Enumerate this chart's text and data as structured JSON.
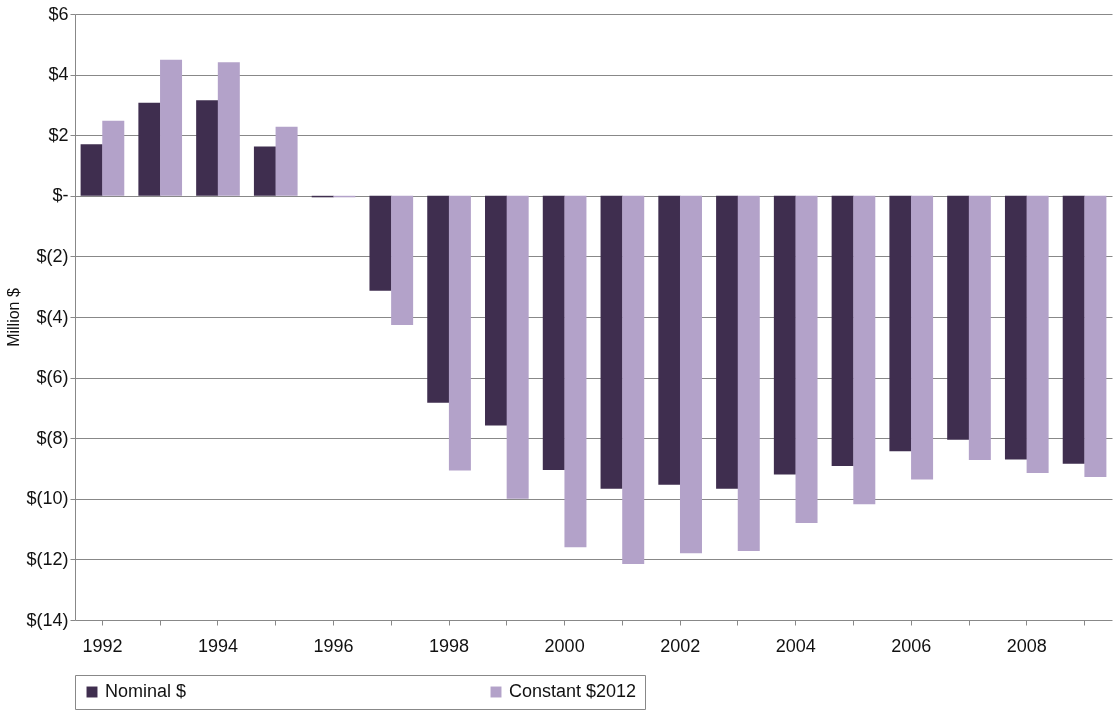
{
  "chart_data": {
    "type": "bar",
    "ylabel": "Million $",
    "categories": [
      "1992",
      null,
      "1994",
      null,
      "1996",
      null,
      "1998",
      null,
      "2000",
      null,
      "2002",
      null,
      "2004",
      null,
      "2006",
      null,
      "2008",
      null
    ],
    "series": [
      {
        "name": "Nominal $",
        "color": "#3f2e4f",
        "values": [
          1.7,
          3.07,
          3.15,
          1.63,
          -0.05,
          -3.13,
          -6.83,
          -7.58,
          -9.05,
          -9.67,
          -9.54,
          -9.67,
          -9.2,
          -8.92,
          -8.43,
          -8.05,
          -8.7,
          -8.84
        ]
      },
      {
        "name": "Constant $2012",
        "color": "#b3a2c9",
        "values": [
          2.48,
          4.49,
          4.41,
          2.28,
          -0.05,
          -4.26,
          -9.07,
          -10.0,
          -11.6,
          -12.15,
          -11.8,
          -11.72,
          -10.8,
          -10.18,
          -9.36,
          -8.72,
          -9.15,
          -9.28
        ]
      }
    ],
    "ylim": [
      -14,
      6
    ],
    "yticks": [
      {
        "value": 6,
        "label": "$6"
      },
      {
        "value": 4,
        "label": "$4"
      },
      {
        "value": 2,
        "label": "$2"
      },
      {
        "value": 0,
        "label": "$-"
      },
      {
        "value": -2,
        "label": "$(2)"
      },
      {
        "value": -4,
        "label": "$(4)"
      },
      {
        "value": -6,
        "label": "$(6)"
      },
      {
        "value": -8,
        "label": "$(8)"
      },
      {
        "value": -10,
        "label": "$(10)"
      },
      {
        "value": -12,
        "label": "$(12)"
      },
      {
        "value": -14,
        "label": "$(14)"
      }
    ],
    "grid": "y",
    "legend": "bottom"
  }
}
